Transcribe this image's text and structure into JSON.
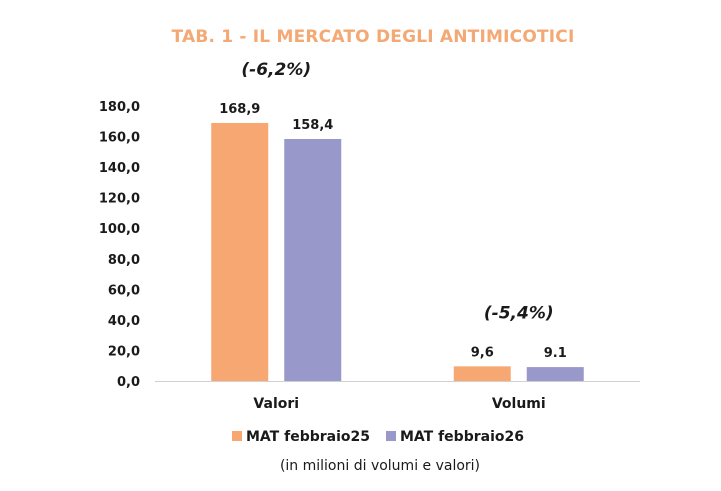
{
  "chart_data": {
    "type": "bar",
    "title": "TAB. 1 - IL MERCATO DEGLI ANTIMICOTICI",
    "categories": [
      "Valori",
      "Volumi"
    ],
    "series": [
      {
        "name": "MAT febbraio25",
        "values": [
          168.9,
          9.6
        ],
        "labels": [
          "168,9",
          "9,6"
        ],
        "color": "#f7a872"
      },
      {
        "name": "MAT febbraio26",
        "values": [
          158.4,
          9.1
        ],
        "labels": [
          "158,4",
          "9.1"
        ],
        "color": "#9898cb"
      }
    ],
    "annotations": [
      "(-6,2%)",
      "(-5,4%)"
    ],
    "yticks": [
      "0,0",
      "20,0",
      "40,0",
      "60,0",
      "80,0",
      "100,0",
      "120,0",
      "140,0",
      "160,0",
      "180,0"
    ],
    "ylim": [
      0,
      180
    ],
    "xlabel": "",
    "ylabel": "",
    "grid": false,
    "legend_position": "bottom",
    "footnote": "(in milioni di volumi e valori)",
    "axis_color": "#d0d0d0"
  }
}
